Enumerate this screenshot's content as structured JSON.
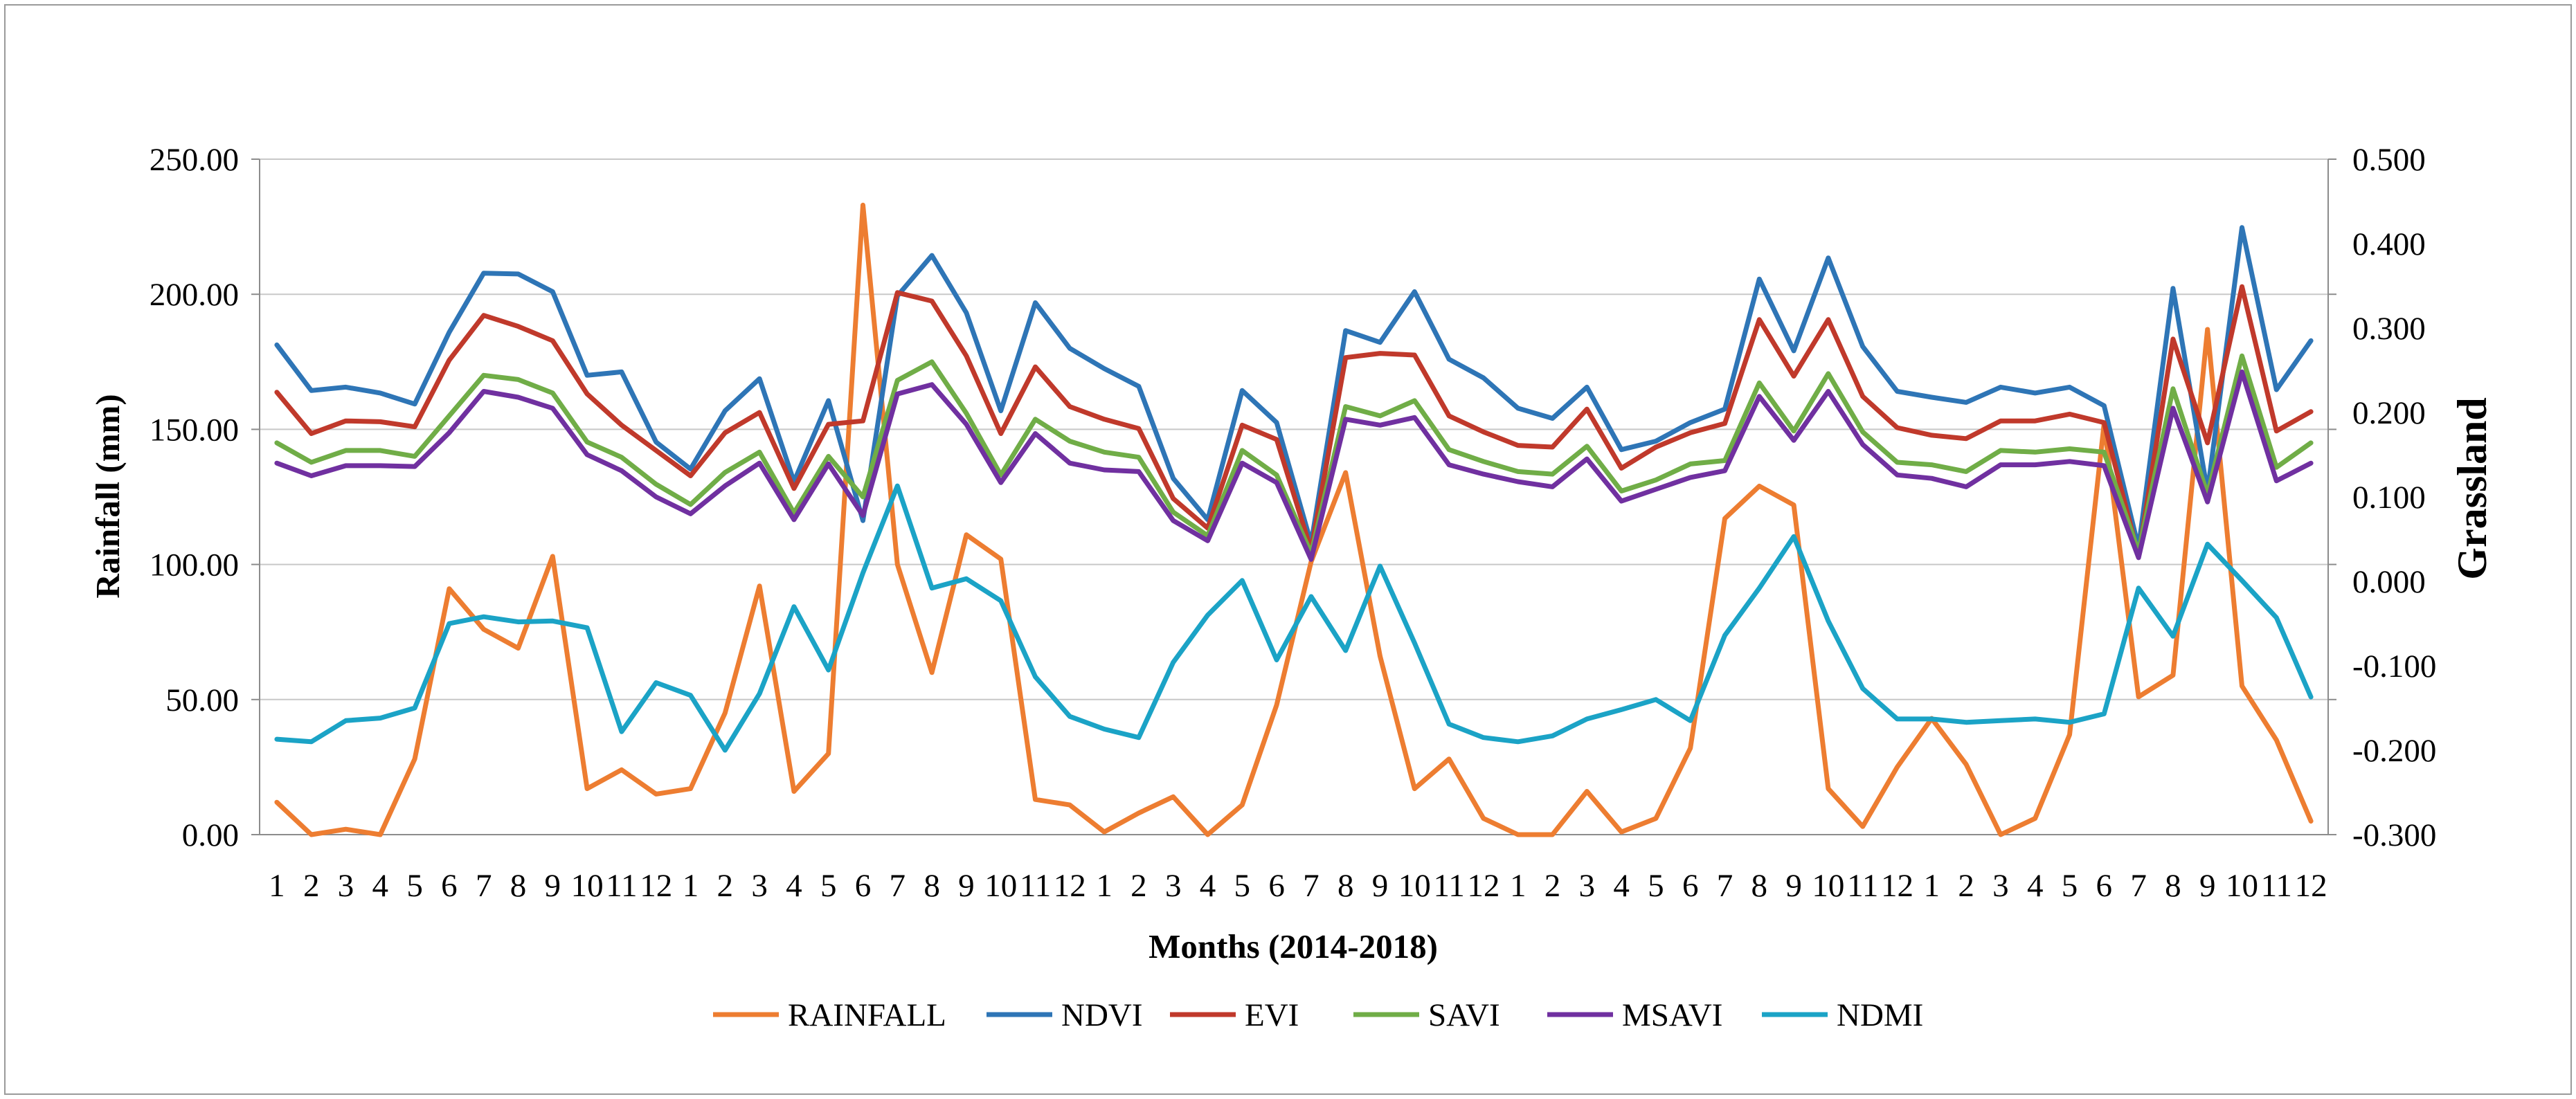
{
  "chart_data": {
    "type": "line",
    "title": "",
    "xlabel": "Months (2014-2018)",
    "ylabel_left": "Rainfall (mm)",
    "ylabel_right": "Grassland",
    "ylim_left": [
      0,
      250
    ],
    "ylim_right": [
      -0.3,
      0.5
    ],
    "left_ticks": [
      "0.00",
      "50.00",
      "100.00",
      "150.00",
      "200.00",
      "250.00"
    ],
    "right_ticks": [
      "-0.300",
      "-0.200",
      "-0.100",
      "0.000",
      "0.100",
      "0.200",
      "0.300",
      "0.400",
      "0.500"
    ],
    "grid": true,
    "legend_position": "bottom",
    "categories": [
      "1",
      "2",
      "3",
      "4",
      "5",
      "6",
      "7",
      "8",
      "9",
      "10",
      "11",
      "12",
      "1",
      "2",
      "3",
      "4",
      "5",
      "6",
      "7",
      "8",
      "9",
      "10",
      "11",
      "12",
      "1",
      "2",
      "3",
      "4",
      "5",
      "6",
      "7",
      "8",
      "9",
      "10",
      "11",
      "12",
      "1",
      "2",
      "3",
      "4",
      "5",
      "6",
      "7",
      "8",
      "9",
      "10",
      "11",
      "12",
      "1",
      "2",
      "3",
      "4",
      "5",
      "6",
      "7",
      "8",
      "9",
      "10",
      "11",
      "12"
    ],
    "series": [
      {
        "name": "RAINFALL",
        "axis": "left",
        "color": "#ED7D31",
        "values": [
          12,
          0,
          2,
          0,
          28,
          91,
          76,
          69,
          103,
          17,
          24,
          15,
          17,
          45,
          92,
          16,
          30,
          233,
          100,
          60,
          111,
          102,
          13,
          11,
          1,
          8,
          14,
          0,
          11,
          48,
          101,
          134,
          66,
          17,
          28,
          6,
          0,
          0,
          16,
          1,
          6,
          32,
          117,
          129,
          122,
          17,
          3,
          25,
          43,
          26,
          0,
          6,
          37,
          152,
          51,
          59,
          187,
          55,
          35,
          5
        ]
      },
      {
        "name": "NDVI",
        "axis": "right",
        "color": "#2E75B6",
        "values": [
          0.28,
          0.226,
          0.23,
          0.223,
          0.21,
          0.295,
          0.365,
          0.364,
          0.343,
          0.244,
          0.248,
          0.165,
          0.133,
          0.202,
          0.24,
          0.118,
          0.214,
          0.072,
          0.338,
          0.386,
          0.318,
          0.202,
          0.33,
          0.276,
          0.252,
          0.231,
          0.122,
          0.073,
          0.226,
          0.188,
          0.045,
          0.297,
          0.283,
          0.343,
          0.263,
          0.241,
          0.205,
          0.193,
          0.23,
          0.156,
          0.166,
          0.188,
          0.204,
          0.358,
          0.273,
          0.383,
          0.278,
          0.225,
          0.218,
          0.212,
          0.23,
          0.223,
          0.23,
          0.208,
          0.04,
          0.347,
          0.106,
          0.419,
          0.227,
          0.285
        ]
      },
      {
        "name": "EVI",
        "axis": "right",
        "color": "#C0392B",
        "values": [
          0.224,
          0.175,
          0.19,
          0.189,
          0.183,
          0.262,
          0.315,
          0.302,
          0.285,
          0.222,
          0.185,
          0.155,
          0.125,
          0.176,
          0.2,
          0.11,
          0.186,
          0.19,
          0.342,
          0.332,
          0.267,
          0.175,
          0.254,
          0.207,
          0.192,
          0.181,
          0.098,
          0.063,
          0.185,
          0.168,
          0.037,
          0.265,
          0.27,
          0.268,
          0.196,
          0.177,
          0.161,
          0.159,
          0.204,
          0.134,
          0.159,
          0.176,
          0.187,
          0.31,
          0.243,
          0.31,
          0.219,
          0.182,
          0.173,
          0.169,
          0.19,
          0.19,
          0.198,
          0.188,
          0.03,
          0.287,
          0.164,
          0.349,
          0.178,
          0.201
        ]
      },
      {
        "name": "SAVI",
        "axis": "right",
        "color": "#70AD47",
        "values": [
          0.164,
          0.141,
          0.155,
          0.155,
          0.148,
          0.196,
          0.244,
          0.239,
          0.223,
          0.165,
          0.147,
          0.115,
          0.091,
          0.129,
          0.153,
          0.081,
          0.148,
          0.1,
          0.238,
          0.26,
          0.199,
          0.126,
          0.192,
          0.166,
          0.153,
          0.147,
          0.082,
          0.054,
          0.155,
          0.126,
          0.033,
          0.207,
          0.196,
          0.214,
          0.156,
          0.142,
          0.13,
          0.127,
          0.16,
          0.107,
          0.12,
          0.139,
          0.143,
          0.235,
          0.178,
          0.246,
          0.177,
          0.141,
          0.138,
          0.13,
          0.155,
          0.153,
          0.157,
          0.153,
          0.035,
          0.228,
          0.103,
          0.267,
          0.135,
          0.164
        ]
      },
      {
        "name": "MSAVI",
        "axis": "right",
        "color": "#7030A0",
        "values": [
          0.14,
          0.125,
          0.137,
          0.137,
          0.136,
          0.176,
          0.225,
          0.218,
          0.205,
          0.15,
          0.131,
          0.1,
          0.08,
          0.113,
          0.14,
          0.073,
          0.139,
          0.078,
          0.222,
          0.233,
          0.186,
          0.117,
          0.175,
          0.14,
          0.132,
          0.13,
          0.072,
          0.048,
          0.14,
          0.117,
          0.026,
          0.192,
          0.185,
          0.194,
          0.138,
          0.127,
          0.118,
          0.112,
          0.145,
          0.095,
          0.109,
          0.123,
          0.131,
          0.219,
          0.167,
          0.225,
          0.162,
          0.126,
          0.122,
          0.112,
          0.138,
          0.138,
          0.142,
          0.137,
          0.028,
          0.205,
          0.094,
          0.248,
          0.119,
          0.14
        ]
      },
      {
        "name": "NDMI",
        "axis": "right",
        "color": "#1BA3C6",
        "values": [
          -0.187,
          -0.19,
          -0.165,
          -0.162,
          -0.15,
          -0.05,
          -0.042,
          -0.048,
          -0.047,
          -0.055,
          -0.178,
          -0.12,
          -0.135,
          -0.2,
          -0.133,
          -0.03,
          -0.105,
          0.01,
          0.113,
          -0.008,
          0.003,
          -0.023,
          -0.113,
          -0.16,
          -0.175,
          -0.185,
          -0.096,
          -0.04,
          0.001,
          -0.093,
          -0.018,
          -0.082,
          0.018,
          -0.073,
          -0.169,
          -0.185,
          -0.19,
          -0.183,
          -0.163,
          -0.152,
          -0.14,
          -0.165,
          -0.064,
          -0.008,
          0.053,
          -0.047,
          -0.127,
          -0.163,
          -0.163,
          -0.167,
          -0.165,
          -0.163,
          -0.167,
          -0.157,
          -0.008,
          -0.065,
          0.044,
          0.001,
          -0.043,
          -0.137
        ]
      }
    ]
  }
}
